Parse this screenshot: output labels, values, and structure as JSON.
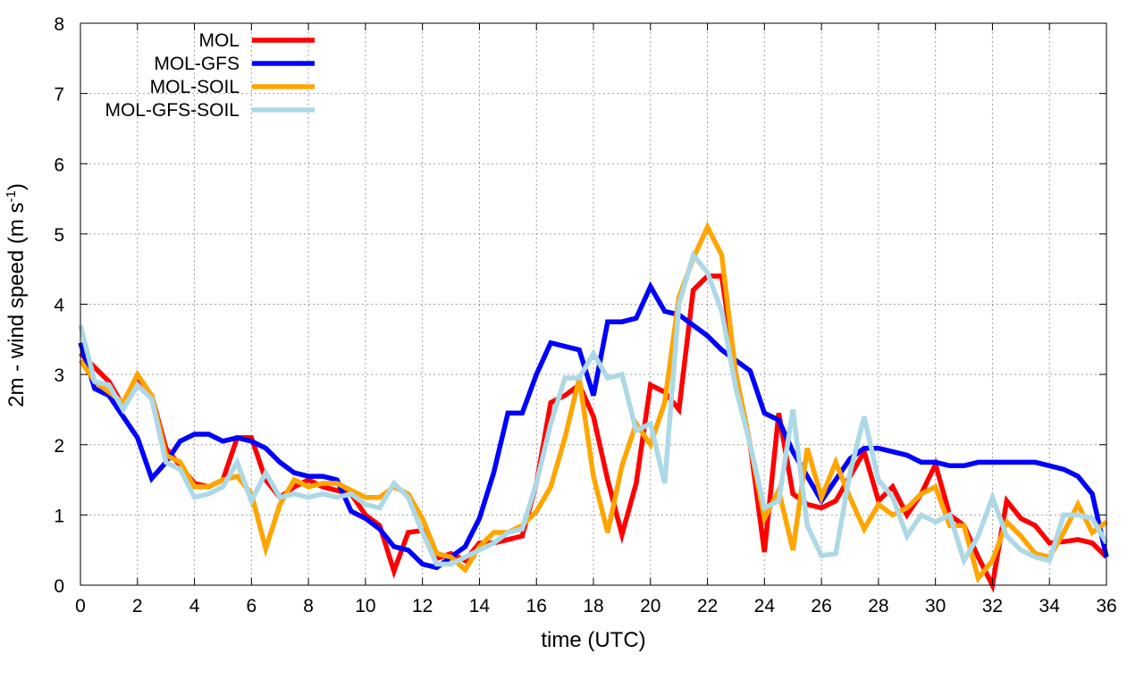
{
  "chart_data": {
    "type": "line",
    "title": "",
    "xlabel": "time (UTC)",
    "ylabel_main": "2m - wind speed  (m s",
    "ylabel_sup": "-1",
    "ylabel_close": ")",
    "xlim": [
      0,
      36
    ],
    "ylim": [
      0,
      8
    ],
    "xticks": [
      0,
      2,
      4,
      6,
      8,
      10,
      12,
      14,
      16,
      18,
      20,
      22,
      24,
      26,
      28,
      30,
      32,
      34,
      36
    ],
    "yticks": [
      0,
      1,
      2,
      3,
      4,
      5,
      6,
      7,
      8
    ],
    "grid": true,
    "legend_position": "top-left",
    "x": [
      0,
      0.5,
      1,
      1.5,
      2,
      2.5,
      3,
      3.5,
      4,
      4.5,
      5,
      5.5,
      6,
      6.5,
      7,
      7.5,
      8,
      8.5,
      9,
      9.5,
      10,
      10.5,
      11,
      11.5,
      12,
      12.5,
      13,
      13.5,
      14,
      14.5,
      15,
      15.5,
      16,
      16.5,
      17,
      17.5,
      18,
      18.5,
      19,
      19.5,
      20,
      20.5,
      21,
      21.5,
      22,
      22.5,
      23,
      23.5,
      24,
      24.5,
      25,
      25.5,
      26,
      26.5,
      27,
      27.5,
      28,
      28.5,
      29,
      29.5,
      30,
      30.5,
      31,
      31.5,
      32,
      32.5,
      33,
      33.5,
      34,
      34.5,
      35,
      35.5,
      36
    ],
    "series": [
      {
        "name": "MOL",
        "color": "#ff0000",
        "values": [
          3.3,
          3.1,
          2.9,
          2.55,
          2.9,
          2.7,
          1.95,
          1.7,
          1.45,
          1.4,
          1.5,
          2.1,
          2.1,
          1.5,
          1.25,
          1.4,
          1.5,
          1.4,
          1.35,
          1.3,
          1.0,
          0.85,
          0.2,
          0.75,
          0.78,
          0.38,
          0.45,
          0.35,
          0.6,
          0.6,
          0.65,
          0.7,
          1.45,
          2.6,
          2.7,
          2.85,
          2.4,
          1.5,
          0.72,
          1.45,
          2.85,
          2.75,
          2.5,
          4.2,
          4.4,
          4.4,
          3.0,
          2.0,
          0.47,
          2.45,
          1.3,
          1.15,
          1.1,
          1.2,
          1.55,
          1.9,
          1.2,
          1.4,
          1.0,
          1.3,
          1.72,
          1.0,
          0.85,
          0.4,
          0.0,
          1.2,
          0.95,
          0.85,
          0.6,
          0.62,
          0.65,
          0.6,
          0.4
        ]
      },
      {
        "name": "MOL-GFS",
        "color": "#0000ff",
        "values": [
          3.45,
          2.8,
          2.7,
          2.4,
          2.1,
          1.52,
          1.75,
          2.05,
          2.15,
          2.15,
          2.05,
          2.1,
          2.05,
          1.95,
          1.75,
          1.6,
          1.55,
          1.55,
          1.5,
          1.05,
          0.95,
          0.8,
          0.55,
          0.5,
          0.3,
          0.25,
          0.4,
          0.55,
          0.95,
          1.6,
          2.45,
          2.45,
          3.0,
          3.45,
          3.4,
          3.35,
          2.7,
          3.75,
          3.75,
          3.8,
          4.25,
          3.9,
          3.85,
          3.7,
          3.55,
          3.35,
          3.2,
          3.05,
          2.45,
          2.35,
          1.9,
          1.55,
          1.2,
          1.5,
          1.8,
          1.95,
          1.95,
          1.9,
          1.85,
          1.75,
          1.75,
          1.7,
          1.7,
          1.75,
          1.75,
          1.75,
          1.75,
          1.75,
          1.7,
          1.65,
          1.55,
          1.3,
          0.4
        ]
      },
      {
        "name": "MOL-SOIL",
        "color": "#ffa500",
        "values": [
          3.2,
          2.9,
          2.75,
          2.6,
          3.0,
          2.7,
          1.85,
          1.75,
          1.4,
          1.4,
          1.5,
          1.55,
          1.3,
          0.52,
          1.15,
          1.5,
          1.4,
          1.45,
          1.45,
          1.35,
          1.25,
          1.25,
          1.4,
          1.3,
          0.95,
          0.45,
          0.4,
          0.22,
          0.55,
          0.75,
          0.75,
          0.85,
          1.05,
          1.4,
          2.1,
          2.95,
          1.55,
          0.75,
          1.7,
          2.3,
          2.0,
          2.6,
          4.1,
          4.65,
          5.1,
          4.7,
          3.0,
          2.0,
          0.95,
          1.35,
          0.5,
          1.95,
          1.25,
          1.75,
          1.25,
          0.8,
          1.15,
          1.0,
          1.1,
          1.3,
          1.4,
          0.85,
          0.85,
          0.1,
          0.35,
          0.9,
          0.7,
          0.45,
          0.4,
          0.75,
          1.15,
          0.75,
          0.9
        ]
      },
      {
        "name": "MOL-GFS-SOIL",
        "color": "#add8e6",
        "values": [
          3.7,
          2.9,
          2.85,
          2.5,
          2.85,
          2.65,
          1.75,
          1.65,
          1.25,
          1.3,
          1.4,
          1.75,
          1.2,
          1.6,
          1.25,
          1.3,
          1.25,
          1.3,
          1.25,
          1.3,
          1.15,
          1.1,
          1.45,
          1.25,
          0.75,
          0.3,
          0.3,
          0.4,
          0.5,
          0.6,
          0.75,
          0.8,
          1.45,
          2.3,
          2.95,
          2.95,
          3.3,
          2.95,
          3.0,
          2.2,
          2.3,
          1.45,
          4.0,
          4.7,
          4.45,
          3.9,
          2.8,
          2.0,
          1.1,
          1.2,
          2.5,
          0.85,
          0.42,
          0.45,
          1.6,
          2.4,
          1.5,
          1.25,
          0.7,
          1.0,
          0.9,
          1.0,
          0.35,
          0.7,
          1.25,
          0.7,
          0.5,
          0.4,
          0.35,
          1.0,
          1.0,
          0.95,
          0.6
        ]
      }
    ]
  }
}
